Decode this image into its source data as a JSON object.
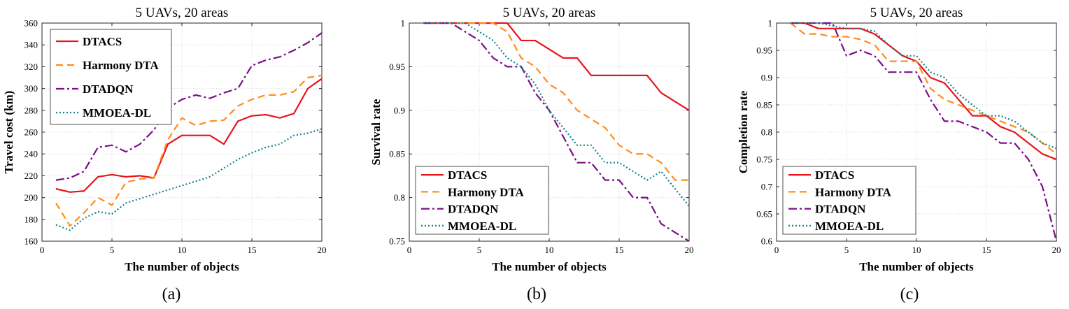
{
  "colors": {
    "DTACS": "#e8141b",
    "Harmony DTA": "#ff8c1a",
    "DTADQN": "#7b0f88",
    "MMOEA-DL": "#12858c"
  },
  "chart_data": [
    {
      "type": "line",
      "panel_label": "(a)",
      "title": "5 UAVs, 20 areas",
      "xlabel": "The number of objects",
      "ylabel": "Travel cost (km)",
      "xlim": [
        0,
        20
      ],
      "ylim": [
        160,
        360
      ],
      "xticks": [
        0,
        5,
        10,
        15,
        20
      ],
      "yticks": [
        160,
        180,
        200,
        220,
        240,
        260,
        280,
        300,
        320,
        340,
        360
      ],
      "grid": true,
      "legend_position": "top-left",
      "x": [
        1,
        2,
        3,
        4,
        5,
        6,
        7,
        8,
        9,
        10,
        11,
        12,
        13,
        14,
        15,
        16,
        17,
        18,
        19,
        20
      ],
      "series": [
        {
          "name": "DTACS",
          "style": "solid",
          "values": [
            208,
            205,
            206,
            219,
            221,
            219,
            220,
            218,
            249,
            257,
            257,
            257,
            249,
            270,
            275,
            276,
            273,
            277,
            300,
            309
          ]
        },
        {
          "name": "Harmony DTA",
          "style": "dashed",
          "values": [
            195,
            174,
            186,
            200,
            193,
            214,
            217,
            218,
            253,
            273,
            266,
            270,
            271,
            284,
            290,
            294,
            294,
            297,
            310,
            312
          ]
        },
        {
          "name": "DTADQN",
          "style": "dashdot",
          "values": [
            216,
            218,
            224,
            246,
            248,
            242,
            249,
            262,
            282,
            290,
            294,
            291,
            296,
            300,
            321,
            326,
            329,
            335,
            342,
            351
          ]
        },
        {
          "name": "MMOEA-DL",
          "style": "dotted",
          "values": [
            175,
            170,
            181,
            187,
            185,
            195,
            199,
            203,
            207,
            211,
            215,
            219,
            227,
            235,
            241,
            246,
            249,
            257,
            259,
            263
          ]
        }
      ]
    },
    {
      "type": "line",
      "panel_label": "(b)",
      "title": "5 UAVs, 20 areas",
      "xlabel": "The number of objects",
      "ylabel": "Survival rate",
      "xlim": [
        0,
        20
      ],
      "ylim": [
        0.75,
        1
      ],
      "xticks": [
        0,
        5,
        10,
        15,
        20
      ],
      "yticks": [
        0.75,
        0.8,
        0.85,
        0.9,
        0.95,
        1
      ],
      "ytick_labels": [
        "0.75",
        "0.8",
        "0.85",
        "0.9",
        "0.95",
        "1"
      ],
      "grid": true,
      "legend_position": "bottom-left",
      "x": [
        1,
        2,
        3,
        4,
        5,
        6,
        7,
        8,
        9,
        10,
        11,
        12,
        13,
        14,
        15,
        16,
        17,
        18,
        19,
        20
      ],
      "series": [
        {
          "name": "DTACS",
          "style": "solid",
          "values": [
            1,
            1,
            1,
            1,
            1,
            1,
            1,
            0.98,
            0.98,
            0.97,
            0.96,
            0.96,
            0.94,
            0.94,
            0.94,
            0.94,
            0.94,
            0.92,
            0.91,
            0.9
          ]
        },
        {
          "name": "Harmony DTA",
          "style": "dashed",
          "values": [
            1,
            1,
            1,
            1,
            1,
            1,
            0.99,
            0.96,
            0.95,
            0.93,
            0.92,
            0.9,
            0.89,
            0.88,
            0.86,
            0.85,
            0.85,
            0.84,
            0.82,
            0.82
          ]
        },
        {
          "name": "DTADQN",
          "style": "dashdot",
          "values": [
            1,
            1,
            1,
            0.99,
            0.98,
            0.96,
            0.95,
            0.95,
            0.92,
            0.9,
            0.87,
            0.84,
            0.84,
            0.82,
            0.82,
            0.8,
            0.8,
            0.77,
            0.76,
            0.75
          ]
        },
        {
          "name": "MMOEA-DL",
          "style": "dotted",
          "values": [
            1,
            1,
            1,
            1,
            0.99,
            0.98,
            0.96,
            0.95,
            0.93,
            0.9,
            0.88,
            0.86,
            0.86,
            0.84,
            0.84,
            0.83,
            0.82,
            0.83,
            0.81,
            0.79
          ]
        }
      ]
    },
    {
      "type": "line",
      "panel_label": "(c)",
      "title": "5 UAVs, 20 areas",
      "xlabel": "The number of objects",
      "ylabel": "Completion rate",
      "xlim": [
        0,
        20
      ],
      "ylim": [
        0.6,
        1
      ],
      "xticks": [
        0,
        5,
        10,
        15,
        20
      ],
      "yticks": [
        0.6,
        0.65,
        0.7,
        0.75,
        0.8,
        0.85,
        0.9,
        0.95,
        1
      ],
      "ytick_labels": [
        "0.6",
        "0.65",
        "0.7",
        "0.75",
        "0.8",
        "0.85",
        "0.9",
        "0.95",
        "1"
      ],
      "grid": true,
      "legend_position": "bottom-left",
      "x": [
        1,
        2,
        3,
        4,
        5,
        6,
        7,
        8,
        9,
        10,
        11,
        12,
        13,
        14,
        15,
        16,
        17,
        18,
        19,
        20
      ],
      "series": [
        {
          "name": "DTACS",
          "style": "solid",
          "values": [
            1,
            1,
            0.99,
            0.99,
            0.99,
            0.99,
            0.98,
            0.96,
            0.94,
            0.93,
            0.9,
            0.89,
            0.86,
            0.83,
            0.83,
            0.81,
            0.8,
            0.78,
            0.76,
            0.75
          ]
        },
        {
          "name": "Harmony DTA",
          "style": "dashed",
          "values": [
            1,
            0.98,
            0.98,
            0.975,
            0.975,
            0.97,
            0.96,
            0.93,
            0.93,
            0.93,
            0.88,
            0.86,
            0.85,
            0.84,
            0.83,
            0.82,
            0.81,
            0.8,
            0.78,
            0.76
          ]
        },
        {
          "name": "DTADQN",
          "style": "dashdot",
          "values": [
            1,
            1,
            1,
            1,
            0.94,
            0.95,
            0.94,
            0.91,
            0.91,
            0.91,
            0.86,
            0.82,
            0.82,
            0.81,
            0.8,
            0.78,
            0.78,
            0.75,
            0.7,
            0.6
          ]
        },
        {
          "name": "MMOEA-DL",
          "style": "dotted",
          "values": [
            1,
            1,
            1,
            0.995,
            0.99,
            0.99,
            0.985,
            0.96,
            0.94,
            0.94,
            0.91,
            0.9,
            0.87,
            0.85,
            0.83,
            0.83,
            0.82,
            0.8,
            0.78,
            0.77
          ]
        }
      ]
    }
  ]
}
